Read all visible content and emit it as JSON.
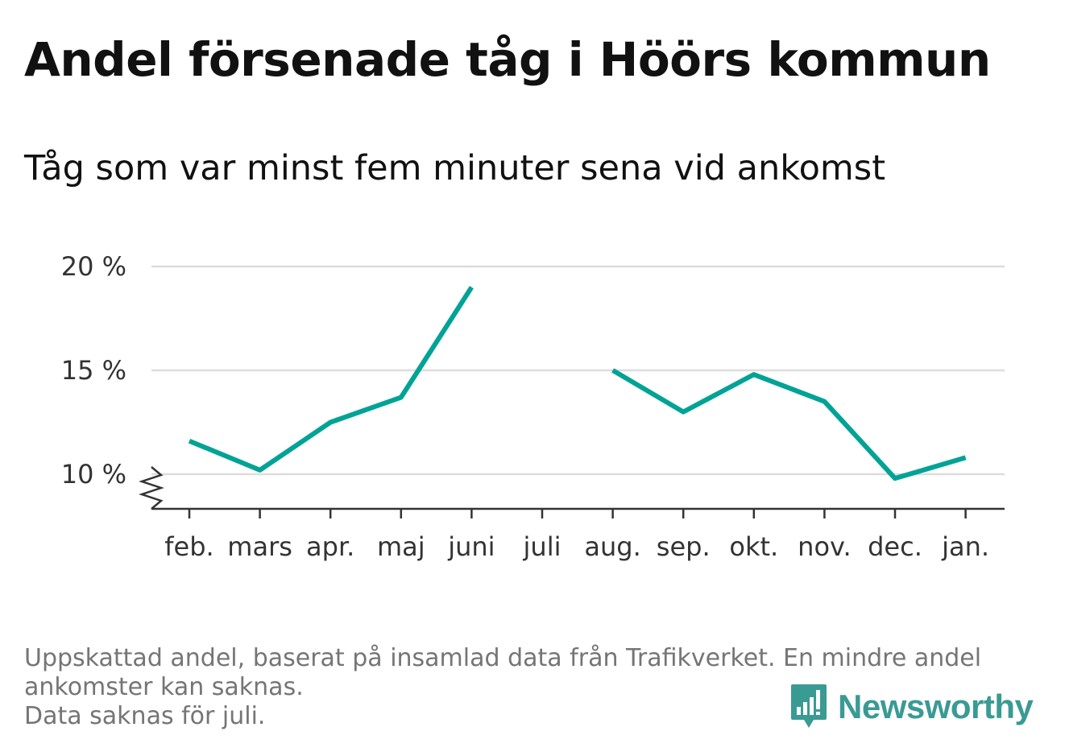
{
  "title": "Andel försenade tåg i Höörs kommun",
  "subtitle": "Tåg som var minst fem minuter sena vid ankomst",
  "footnote": {
    "line1": "Uppskattad andel, baserat på insamlad data från Trafikverket. En mindre andel",
    "line2": "ankomster kan saknas.",
    "line3": "Data saknas för juli."
  },
  "brand": {
    "name": "Newsworthy",
    "color": "#3a9a94",
    "icon": "bar-chart-logo-icon"
  },
  "colors": {
    "line": "#00a395",
    "grid": "#dddddd",
    "axis": "#333333"
  },
  "chart_data": {
    "type": "line",
    "categories": [
      "feb.",
      "mars",
      "apr.",
      "maj",
      "juni",
      "juli",
      "aug.",
      "sep.",
      "okt.",
      "nov.",
      "dec.",
      "jan."
    ],
    "series": [
      {
        "values": [
          11.6,
          10.2,
          12.5,
          13.7,
          19.0,
          null,
          15.0,
          13.0,
          14.8,
          13.5,
          9.8,
          10.8
        ]
      }
    ],
    "y_ticks": [
      10,
      15,
      20
    ],
    "y_tick_labels": [
      "10 %",
      "15 %",
      "20 %"
    ],
    "ylim": [
      8.4,
      20
    ],
    "y_axis_break": true,
    "grid": true,
    "legend": "none"
  }
}
